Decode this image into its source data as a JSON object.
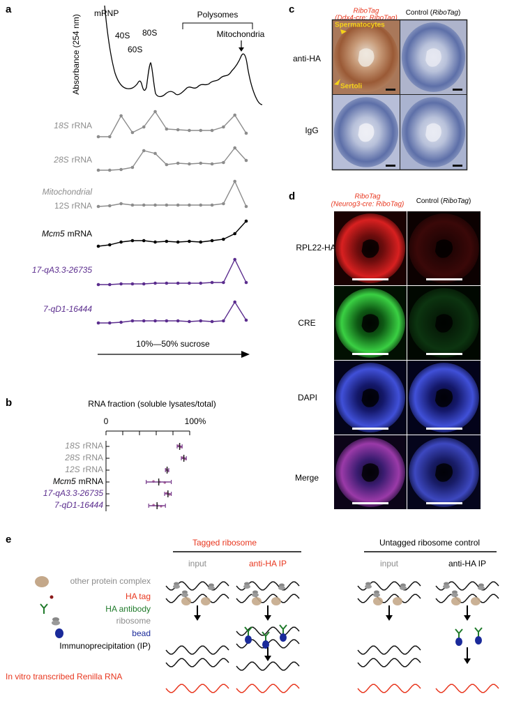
{
  "panel_labels": [
    "a",
    "b",
    "c",
    "d",
    "e"
  ],
  "panel_a": {
    "y_axis_label": "Absorbance (254 nm)",
    "peak_labels": [
      "mRNP",
      "40S",
      "60S",
      "80S"
    ],
    "polysomes_label": "Polysomes",
    "mitochondria_label": "Mitochondria",
    "x_axis_label": "10%—50% sucrose",
    "traces": [
      {
        "italic": "18S",
        "rest": "rRNA",
        "color": "#8c8c8c",
        "values": [
          0,
          0,
          30,
          6,
          14,
          36,
          11,
          10,
          9,
          9,
          9,
          14,
          31,
          5
        ]
      },
      {
        "italic": "28S",
        "rest": "rRNA",
        "color": "#8c8c8c",
        "values": [
          0,
          0,
          1,
          4,
          28,
          24,
          8,
          10,
          9,
          10,
          9,
          11,
          32,
          14
        ]
      },
      {
        "italic": "Mitochondrial",
        "rest": "12S rRNA",
        "color": "#8c8c8c",
        "values": [
          0,
          1,
          4,
          2,
          2,
          2,
          2,
          2,
          2,
          2,
          2,
          4,
          36,
          0
        ]
      },
      {
        "italic": "Mcm5",
        "rest": "mRNA",
        "color": "#000000",
        "values": [
          0,
          2,
          6,
          8,
          8,
          6,
          7,
          6,
          7,
          6,
          8,
          10,
          18,
          36
        ]
      },
      {
        "italic": "17-qA3.3-26735",
        "rest": null,
        "color": "#5b2d8e",
        "values": [
          0,
          0,
          1,
          1,
          1,
          2,
          2,
          2,
          2,
          2,
          3,
          3,
          36,
          3
        ]
      },
      {
        "italic": "7-qD1-16444",
        "rest": null,
        "color": "#5b2d8e",
        "values": [
          0,
          0,
          1,
          3,
          3,
          3,
          3,
          3,
          2,
          3,
          2,
          3,
          30,
          4
        ]
      }
    ]
  },
  "chart_data": {
    "type": "dot",
    "title": "RNA fraction (soluble lysates/total)",
    "categories": [
      {
        "italic": "18S",
        "rest": "rRNA"
      },
      {
        "italic": "28S",
        "rest": "rRNA"
      },
      {
        "italic": "12S",
        "rest": "rRNA"
      },
      {
        "italic": "Mcm5",
        "rest": "mRNA"
      },
      {
        "italic": "17-qA3.3-26735",
        "rest": null
      },
      {
        "italic": "7-qD1-16444",
        "rest": null
      }
    ],
    "label_colors": [
      "#8c8c8c",
      "#8c8c8c",
      "#8c8c8c",
      "#000000",
      "#5b2d8e",
      "#5b2d8e"
    ],
    "values": [
      88,
      93,
      73,
      63,
      74,
      61
    ],
    "errors": [
      3,
      3,
      2,
      15,
      4,
      10
    ],
    "color": "#b06a9a",
    "error_color": "#7a3f8e",
    "xlim": [
      0,
      100
    ],
    "xticks": [
      0,
      {
        "value": 100,
        "label": "100%"
      }
    ],
    "minor_xticks": [
      20,
      40,
      60,
      80
    ]
  },
  "panel_c": {
    "tagged_header": [
      "RiboTag",
      "(Ddx4-cre: RiboTag)"
    ],
    "control_header": {
      "plain": "Control (",
      "italic": "RiboTag",
      "close": ")"
    },
    "rows": [
      "anti-HA",
      "IgG"
    ],
    "annotations": [
      "Spermatocytes",
      "Sertoli"
    ]
  },
  "panel_d": {
    "tagged_header": [
      "RiboTag",
      "(Neurog3-cre: RiboTag)"
    ],
    "control_header": {
      "plain": "Control (",
      "italic": "RiboTag",
      "close": ")"
    },
    "rows": [
      "RPL22-HA",
      "CRE",
      "DAPI",
      "Merge"
    ]
  },
  "panel_e": {
    "group_tagged": "Tagged ribosome",
    "group_untagged": "Untagged ribosome control",
    "columns": [
      "input",
      "anti-HA IP",
      "input",
      "anti-HA IP"
    ],
    "legend": [
      "other protein complex",
      "HA tag",
      "HA antibody",
      "ribosome",
      "bead"
    ],
    "step_label": "Immunoprecipitation (IP)",
    "rna_label": "In vitro transcribed Renilla RNA"
  }
}
